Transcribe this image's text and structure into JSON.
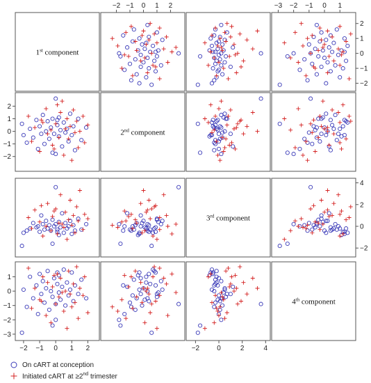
{
  "colors": {
    "circle": "#3a3ab8",
    "plus": "#d42020",
    "frame": "#555555"
  },
  "legend": {
    "items": [
      {
        "marker": "circle",
        "label": "On cART at conception"
      },
      {
        "marker": "plus",
        "label_pre": "Initiated cART at ≥2",
        "label_sup": "nd",
        "label_post": " trimester"
      }
    ]
  },
  "chart_data": {
    "type": "scatter",
    "layout": "scatterplot-matrix",
    "variables": [
      {
        "num": "1",
        "sup": "st",
        "rest": " component"
      },
      {
        "num": "2",
        "sup": "nd",
        "rest": " component"
      },
      {
        "num": "3",
        "sup": "rd",
        "rest": " component"
      },
      {
        "num": "4",
        "sup": "th",
        "rest": " component"
      }
    ],
    "ranges": [
      [
        -2.3,
        2.5
      ],
      [
        -2.9,
        2.8
      ],
      [
        -2.5,
        4.1
      ],
      [
        -3.2,
        1.8
      ]
    ],
    "ticks": [
      [
        -2,
        -1,
        0,
        1,
        2
      ],
      [
        -2,
        -1,
        0,
        1,
        2
      ],
      [
        -2,
        0,
        2,
        4
      ],
      [
        -3,
        -2,
        -1,
        0,
        1
      ]
    ],
    "grid": false,
    "legend_position": "bottom-left",
    "series": [
      {
        "name": "On cART at conception",
        "marker": "circle",
        "points": [
          [
            -2.1,
            0.6,
            -1.8,
            -2.9
          ],
          [
            -2.0,
            -0.3,
            -0.6,
            0.1
          ],
          [
            -1.8,
            -0.9,
            -0.4,
            -1.1
          ],
          [
            -1.6,
            0.2,
            -0.2,
            1.0
          ],
          [
            -1.4,
            -0.5,
            0.3,
            -0.5
          ],
          [
            -1.2,
            0.9,
            -0.1,
            0.4
          ],
          [
            -1.1,
            -1.4,
            0.0,
            -1.6
          ],
          [
            -1.0,
            0.4,
            -0.5,
            1.2
          ],
          [
            -0.9,
            -0.2,
            1.0,
            -0.2
          ],
          [
            -0.8,
            1.3,
            0.2,
            0.7
          ],
          [
            -0.7,
            -1.0,
            -0.3,
            -0.8
          ],
          [
            -0.6,
            0.0,
            0.5,
            0.2
          ],
          [
            -0.5,
            0.8,
            -0.2,
            1.4
          ],
          [
            -0.4,
            -0.6,
            0.1,
            -1.3
          ],
          [
            -0.3,
            0.3,
            -0.4,
            0.0
          ],
          [
            -0.2,
            1.0,
            0.6,
            -0.4
          ],
          [
            -0.1,
            -0.2,
            0.0,
            0.9
          ],
          [
            0.0,
            2.6,
            3.6,
            -0.9
          ],
          [
            0.0,
            -1.8,
            0.2,
            -2.0
          ],
          [
            0.1,
            0.5,
            -0.3,
            0.5
          ],
          [
            0.2,
            -0.4,
            -0.8,
            1.1
          ],
          [
            0.2,
            1.1,
            0.4,
            -0.1
          ],
          [
            0.3,
            0.1,
            -0.1,
            -0.6
          ],
          [
            0.4,
            -1.2,
            1.2,
            0.3
          ],
          [
            0.5,
            0.7,
            -0.6,
            1.5
          ],
          [
            0.6,
            -0.1,
            0.3,
            -1.0
          ],
          [
            0.7,
            0.2,
            -0.2,
            0.6
          ],
          [
            0.8,
            -0.8,
            0.0,
            -0.3
          ],
          [
            0.9,
            1.4,
            0.5,
            0.1
          ],
          [
            1.0,
            -0.3,
            -0.7,
            1.3
          ],
          [
            1.1,
            0.4,
            0.1,
            -0.7
          ],
          [
            1.2,
            -1.5,
            -0.4,
            0.4
          ],
          [
            1.4,
            1.0,
            0.7,
            -0.2
          ],
          [
            1.6,
            -0.7,
            -0.3,
            0.8
          ],
          [
            1.9,
            0.3,
            0.2,
            -0.5
          ],
          [
            -0.2,
            -1.7,
            -1.6,
            -2.4
          ],
          [
            0.1,
            0.9,
            -0.5,
            1.3
          ]
        ]
      },
      {
        "name": "Initiated cART at ≥2nd trimester",
        "marker": "plus",
        "points": [
          [
            -1.7,
            1.2,
            0.8,
            1.6
          ],
          [
            -1.5,
            -0.8,
            -0.2,
            -1.2
          ],
          [
            -1.3,
            0.3,
            1.5,
            0.2
          ],
          [
            -1.0,
            -1.6,
            0.4,
            -0.6
          ],
          [
            -0.8,
            0.7,
            -0.9,
            1.0
          ],
          [
            -0.6,
            1.8,
            0.0,
            -1.7
          ],
          [
            -0.5,
            -0.2,
            2.1,
            0.6
          ],
          [
            -0.3,
            0.1,
            -0.4,
            -2.2
          ],
          [
            -0.2,
            -1.1,
            0.9,
            0.3
          ],
          [
            0.0,
            0.6,
            1.6,
            -0.9
          ],
          [
            0.1,
            2.1,
            -0.7,
            1.2
          ],
          [
            0.2,
            -0.5,
            0.3,
            -0.4
          ],
          [
            0.3,
            1.5,
            2.9,
            0.9
          ],
          [
            0.5,
            -1.9,
            -0.1,
            -1.4
          ],
          [
            0.6,
            0.2,
            1.3,
            0.0
          ],
          [
            0.7,
            1.0,
            -1.2,
            -2.6
          ],
          [
            0.8,
            -0.6,
            0.6,
            1.4
          ],
          [
            0.9,
            0.4,
            2.4,
            -0.2
          ],
          [
            1.0,
            -2.3,
            0.1,
            -1.1
          ],
          [
            1.1,
            1.7,
            1.0,
            0.5
          ],
          [
            1.2,
            -0.1,
            -0.6,
            -0.8
          ],
          [
            1.3,
            0.8,
            1.8,
            1.7
          ],
          [
            1.4,
            -1.3,
            0.5,
            -1.9
          ],
          [
            1.5,
            0.0,
            3.3,
            0.2
          ],
          [
            1.7,
            1.2,
            -0.3,
            -0.3
          ],
          [
            1.8,
            -0.9,
            1.1,
            1.0
          ],
          [
            2.0,
            0.5,
            0.7,
            -1.5
          ],
          [
            -0.1,
            -1.4,
            1.4,
            1.1
          ],
          [
            0.4,
            2.4,
            0.2,
            -0.1
          ],
          [
            -0.9,
            0.9,
            1.9,
            -0.7
          ]
        ]
      }
    ]
  }
}
